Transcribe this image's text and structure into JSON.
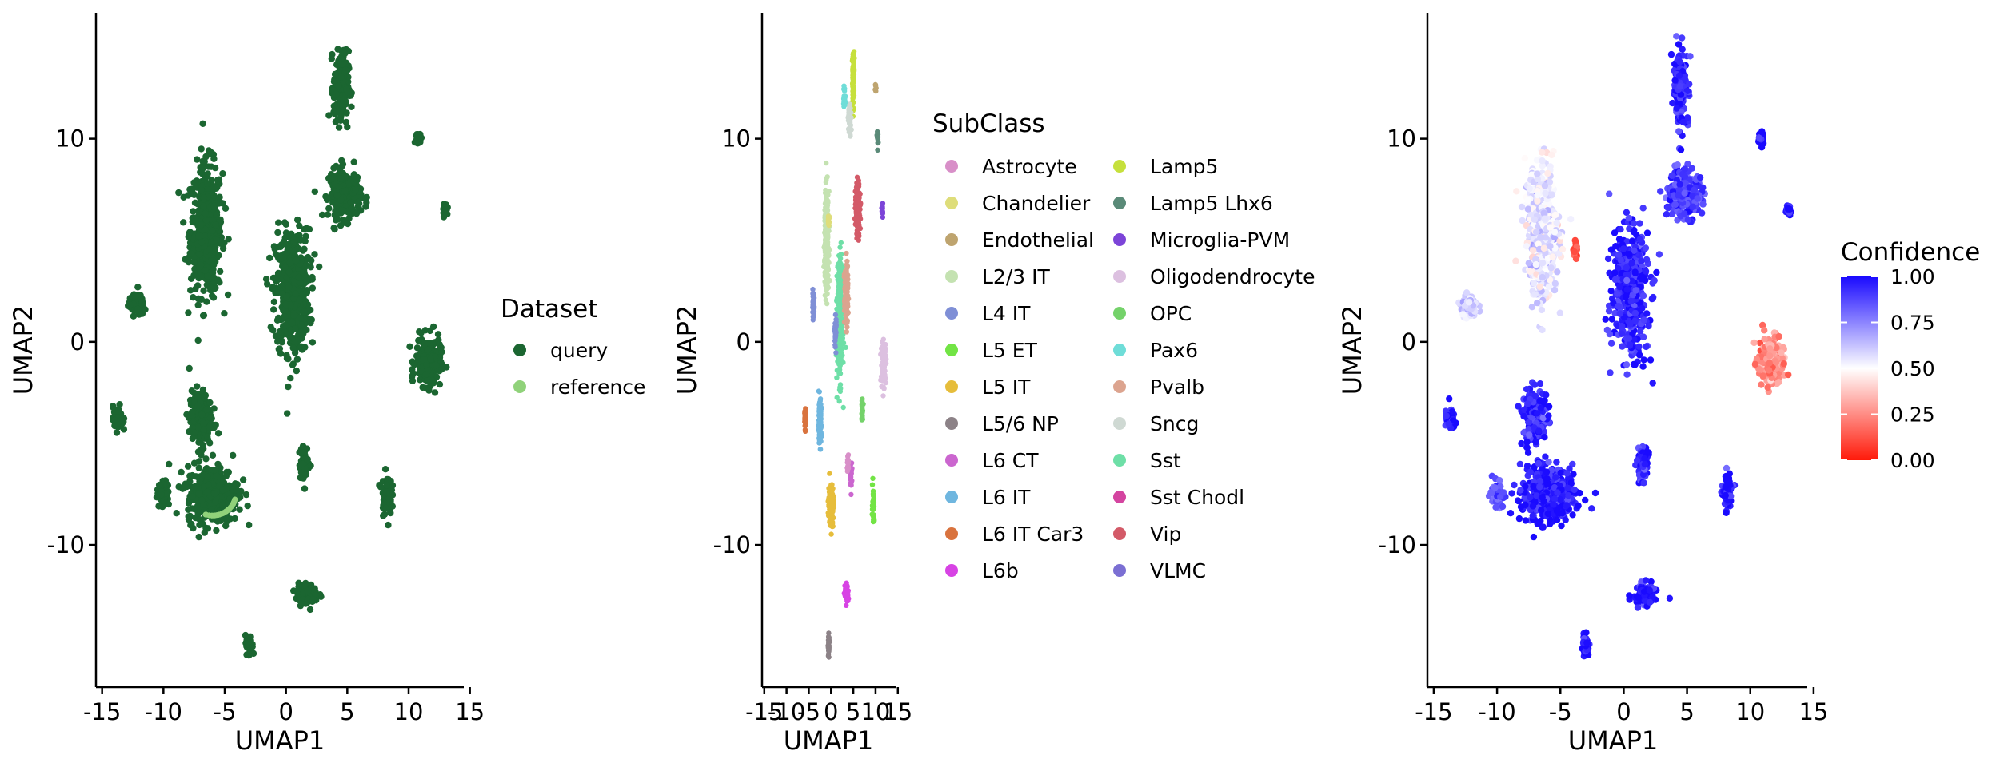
{
  "chart_data": [
    {
      "type": "scatter",
      "title": "",
      "xlabel": "UMAP1",
      "ylabel": "UMAP2",
      "xlim": [
        -15.5,
        14.5
      ],
      "ylim": [
        -17,
        16.2
      ],
      "xticks": [
        -15,
        -10,
        -5,
        0,
        5,
        10,
        15
      ],
      "yticks": [
        -10,
        0,
        10
      ],
      "grid": false,
      "legend_position": "right",
      "legend": {
        "title": "Dataset",
        "entries": [
          {
            "name": "query",
            "color": "#1b6631"
          },
          {
            "name": "reference",
            "color": "#90d27a"
          }
        ]
      },
      "clusters": [
        {
          "label": "L2/3 IT",
          "x": -6.5,
          "y": 5.5,
          "sx": 1.3,
          "sy": 3.2,
          "n": 500
        },
        {
          "label": "Sst",
          "x": 0.5,
          "y": 2.5,
          "sx": 1.4,
          "sy": 3.0,
          "n": 520
        },
        {
          "label": "L4 IT",
          "x": 4.8,
          "y": 7.3,
          "sx": 1.3,
          "sy": 1.2,
          "n": 240
        },
        {
          "label": "Pvalb",
          "x": 11.6,
          "y": -1.0,
          "sx": 1.0,
          "sy": 1.2,
          "n": 220
        },
        {
          "label": "Lamp5",
          "x": 4.5,
          "y": 12.5,
          "sx": 0.6,
          "sy": 1.8,
          "n": 170
        },
        {
          "label": "L5 IT",
          "x": -6.0,
          "y": -7.5,
          "sx": 2.1,
          "sy": 1.4,
          "n": 380
        },
        {
          "label": "L6 IT",
          "x": -7.0,
          "y": -3.8,
          "sx": 0.9,
          "sy": 1.4,
          "n": 200
        },
        {
          "label": "Oligodendrocyte",
          "x": -12.2,
          "y": 1.8,
          "sx": 0.6,
          "sy": 0.5,
          "n": 80
        },
        {
          "label": "L6 IT Car3",
          "x": -13.7,
          "y": -3.8,
          "sx": 0.4,
          "sy": 0.6,
          "n": 60
        },
        {
          "label": "L6 CT",
          "x": -10.0,
          "y": -7.5,
          "sx": 0.5,
          "sy": 0.6,
          "n": 60
        },
        {
          "label": "Vip",
          "x": 1.5,
          "y": -6.0,
          "sx": 0.4,
          "sy": 0.8,
          "n": 70
        },
        {
          "label": "L5 ET",
          "x": 8.2,
          "y": -7.5,
          "sx": 0.4,
          "sy": 1.0,
          "n": 70
        },
        {
          "label": "L6b",
          "x": 1.7,
          "y": -12.4,
          "sx": 0.9,
          "sy": 0.5,
          "n": 100
        },
        {
          "label": "L5/6 NP",
          "x": -3.0,
          "y": -15.0,
          "sx": 0.3,
          "sy": 0.5,
          "n": 40
        },
        {
          "label": "Endothelial",
          "x": 10.8,
          "y": 10.0,
          "sx": 0.2,
          "sy": 0.4,
          "n": 25
        },
        {
          "label": "Microglia-PVM",
          "x": 13.0,
          "y": 6.5,
          "sx": 0.2,
          "sy": 0.3,
          "n": 20
        }
      ]
    },
    {
      "type": "scatter",
      "title": "",
      "xlabel": "UMAP1",
      "ylabel": "UMAP2",
      "xlim": [
        -15.5,
        14.5
      ],
      "ylim": [
        -17,
        16.2
      ],
      "xticks": [
        -15,
        -10,
        -5,
        0,
        5,
        10,
        15
      ],
      "xtick_labels": [
        "-15",
        "-10",
        "-5",
        "0",
        "5",
        "10",
        "15"
      ],
      "yticks": [
        -10,
        0,
        10
      ],
      "grid": false,
      "legend_position": "right",
      "legend": {
        "title": "SubClass",
        "entries": [
          {
            "name": "Astrocyte",
            "color": "#d88fc8"
          },
          {
            "name": "Chandelier",
            "color": "#dedd7a"
          },
          {
            "name": "Endothelial",
            "color": "#bea46f"
          },
          {
            "name": "L2/3 IT",
            "color": "#c4e2b1"
          },
          {
            "name": "L4 IT",
            "color": "#7f8fd6"
          },
          {
            "name": "L5 ET",
            "color": "#72e445"
          },
          {
            "name": "L5 IT",
            "color": "#e6bd3b"
          },
          {
            "name": "L5/6 NP",
            "color": "#8c8287"
          },
          {
            "name": "L6 CT",
            "color": "#cb66cf"
          },
          {
            "name": "L6 IT",
            "color": "#6fb6df"
          },
          {
            "name": "L6 IT Car3",
            "color": "#d9733e"
          },
          {
            "name": "L6b",
            "color": "#d743e4"
          },
          {
            "name": "Lamp5",
            "color": "#c6e03c"
          },
          {
            "name": "Lamp5 Lhx6",
            "color": "#5a8a78"
          },
          {
            "name": "Microglia-PVM",
            "color": "#7c44d8"
          },
          {
            "name": "Oligodendrocyte",
            "color": "#dcc0e0"
          },
          {
            "name": "OPC",
            "color": "#74d26a"
          },
          {
            "name": "Pax6",
            "color": "#6fddd8"
          },
          {
            "name": "Pvalb",
            "color": "#dca48f"
          },
          {
            "name": "Sncg",
            "color": "#cfd9d3"
          },
          {
            "name": "Sst",
            "color": "#6edfa7"
          },
          {
            "name": "Sst Chodl",
            "color": "#d444a0"
          },
          {
            "name": "Vip",
            "color": "#d35a68"
          },
          {
            "name": "VLMC",
            "color": "#7b6fd3"
          }
        ]
      },
      "clusters": [
        {
          "label": "L2/3 IT",
          "x": -1.0,
          "y": 5.0,
          "sx": 0.45,
          "sy": 2.3,
          "n": 300
        },
        {
          "label": "Sst",
          "x": 2.0,
          "y": 1.0,
          "sx": 0.6,
          "sy": 2.8,
          "n": 320
        },
        {
          "label": "Pvalb",
          "x": 3.4,
          "y": 2.3,
          "sx": 0.4,
          "sy": 1.5,
          "n": 150
        },
        {
          "label": "Vip",
          "x": 6.0,
          "y": 6.5,
          "sx": 0.5,
          "sy": 1.3,
          "n": 160
        },
        {
          "label": "Lamp5",
          "x": 5.0,
          "y": 13.0,
          "sx": 0.2,
          "sy": 1.4,
          "n": 70
        },
        {
          "label": "Sncg",
          "x": 4.2,
          "y": 11.0,
          "sx": 0.35,
          "sy": 0.7,
          "n": 60
        },
        {
          "label": "Pax6",
          "x": 3.0,
          "y": 12.0,
          "sx": 0.2,
          "sy": 0.5,
          "n": 30
        },
        {
          "label": "L5 IT",
          "x": 0.0,
          "y": -8.0,
          "sx": 0.55,
          "sy": 1.0,
          "n": 200
        },
        {
          "label": "L6 IT",
          "x": -2.5,
          "y": -4.0,
          "sx": 0.35,
          "sy": 1.1,
          "n": 90
        },
        {
          "label": "L4 IT",
          "x": -4.0,
          "y": 1.8,
          "sx": 0.2,
          "sy": 0.6,
          "n": 40
        },
        {
          "label": "L4 IT",
          "x": 1.0,
          "y": 0.5,
          "sx": 0.2,
          "sy": 0.8,
          "n": 40
        },
        {
          "label": "Oligodendrocyte",
          "x": 11.8,
          "y": -1.0,
          "sx": 0.55,
          "sy": 1.0,
          "n": 110
        },
        {
          "label": "L6 IT Car3",
          "x": -5.8,
          "y": -3.8,
          "sx": 0.15,
          "sy": 0.6,
          "n": 30
        },
        {
          "label": "L5 ET",
          "x": 9.5,
          "y": -8.0,
          "sx": 0.2,
          "sy": 0.9,
          "n": 40
        },
        {
          "label": "L6 CT",
          "x": 4.5,
          "y": -6.5,
          "sx": 0.2,
          "sy": 0.6,
          "n": 30
        },
        {
          "label": "Astrocyte",
          "x": 3.8,
          "y": -6.0,
          "sx": 0.15,
          "sy": 0.5,
          "n": 25
        },
        {
          "label": "OPC",
          "x": 7.0,
          "y": -3.5,
          "sx": 0.2,
          "sy": 0.5,
          "n": 25
        },
        {
          "label": "L6b",
          "x": 3.5,
          "y": -12.4,
          "sx": 0.4,
          "sy": 0.5,
          "n": 70
        },
        {
          "label": "L5/6 NP",
          "x": -0.5,
          "y": -15.0,
          "sx": 0.15,
          "sy": 0.5,
          "n": 25
        },
        {
          "label": "Lamp5 Lhx6",
          "x": 10.5,
          "y": 10.0,
          "sx": 0.12,
          "sy": 0.4,
          "n": 15
        },
        {
          "label": "Microglia-PVM",
          "x": 11.5,
          "y": 6.5,
          "sx": 0.12,
          "sy": 0.3,
          "n": 12
        },
        {
          "label": "Chandelier",
          "x": -0.5,
          "y": 6.0,
          "sx": 0.2,
          "sy": 0.3,
          "n": 12
        },
        {
          "label": "Endothelial",
          "x": 10.0,
          "y": 12.5,
          "sx": 0.1,
          "sy": 0.2,
          "n": 8
        }
      ]
    },
    {
      "type": "scatter",
      "title": "",
      "xlabel": "UMAP1",
      "ylabel": "UMAP2",
      "xlim": [
        -15.5,
        14.5
      ],
      "ylim": [
        -17,
        16.2
      ],
      "xticks": [
        -15,
        -10,
        -5,
        0,
        5,
        10,
        15
      ],
      "yticks": [
        -10,
        0,
        10
      ],
      "grid": false,
      "legend_position": "right",
      "legend": {
        "title": "Confidence",
        "scale": "continuous",
        "ticks": [
          "1.00",
          "0.75",
          "0.50",
          "0.25",
          "0.00"
        ],
        "colors": {
          "low": "#ff1a0a",
          "mid": "#ffffff",
          "high": "#1a0aff"
        }
      },
      "clusters": [
        {
          "x": -6.5,
          "y": 5.5,
          "sx": 1.3,
          "sy": 3.2,
          "n": 500,
          "confidence": 0.55
        },
        {
          "x": 0.5,
          "y": 2.5,
          "sx": 1.4,
          "sy": 3.0,
          "n": 520,
          "confidence": 0.95
        },
        {
          "x": 4.8,
          "y": 7.3,
          "sx": 1.3,
          "sy": 1.2,
          "n": 240,
          "confidence": 0.9
        },
        {
          "x": 11.6,
          "y": -1.0,
          "sx": 1.0,
          "sy": 1.2,
          "n": 220,
          "confidence": 0.25
        },
        {
          "x": 4.5,
          "y": 12.5,
          "sx": 0.6,
          "sy": 1.8,
          "n": 170,
          "confidence": 0.95
        },
        {
          "x": -6.0,
          "y": -7.5,
          "sx": 2.1,
          "sy": 1.4,
          "n": 380,
          "confidence": 0.97
        },
        {
          "x": -7.0,
          "y": -3.8,
          "sx": 0.9,
          "sy": 1.4,
          "n": 200,
          "confidence": 0.95
        },
        {
          "x": -12.2,
          "y": 1.8,
          "sx": 0.6,
          "sy": 0.5,
          "n": 80,
          "confidence": 0.6
        },
        {
          "x": -13.7,
          "y": -3.8,
          "sx": 0.4,
          "sy": 0.6,
          "n": 60,
          "confidence": 0.98
        },
        {
          "x": -10.0,
          "y": -7.5,
          "sx": 0.5,
          "sy": 0.6,
          "n": 60,
          "confidence": 0.85
        },
        {
          "x": 1.5,
          "y": -6.0,
          "sx": 0.4,
          "sy": 0.8,
          "n": 70,
          "confidence": 0.95
        },
        {
          "x": 8.2,
          "y": -7.5,
          "sx": 0.4,
          "sy": 1.0,
          "n": 70,
          "confidence": 0.98
        },
        {
          "x": 1.7,
          "y": -12.4,
          "sx": 0.9,
          "sy": 0.5,
          "n": 100,
          "confidence": 0.98
        },
        {
          "x": -3.0,
          "y": -15.0,
          "sx": 0.3,
          "sy": 0.5,
          "n": 40,
          "confidence": 0.99
        },
        {
          "x": 10.8,
          "y": 10.0,
          "sx": 0.2,
          "sy": 0.4,
          "n": 25,
          "confidence": 0.99
        },
        {
          "x": 13.0,
          "y": 6.5,
          "sx": 0.2,
          "sy": 0.3,
          "n": 20,
          "confidence": 0.99
        },
        {
          "x": -3.8,
          "y": 4.5,
          "sx": 0.15,
          "sy": 0.4,
          "n": 15,
          "confidence": 0.1
        }
      ]
    }
  ]
}
